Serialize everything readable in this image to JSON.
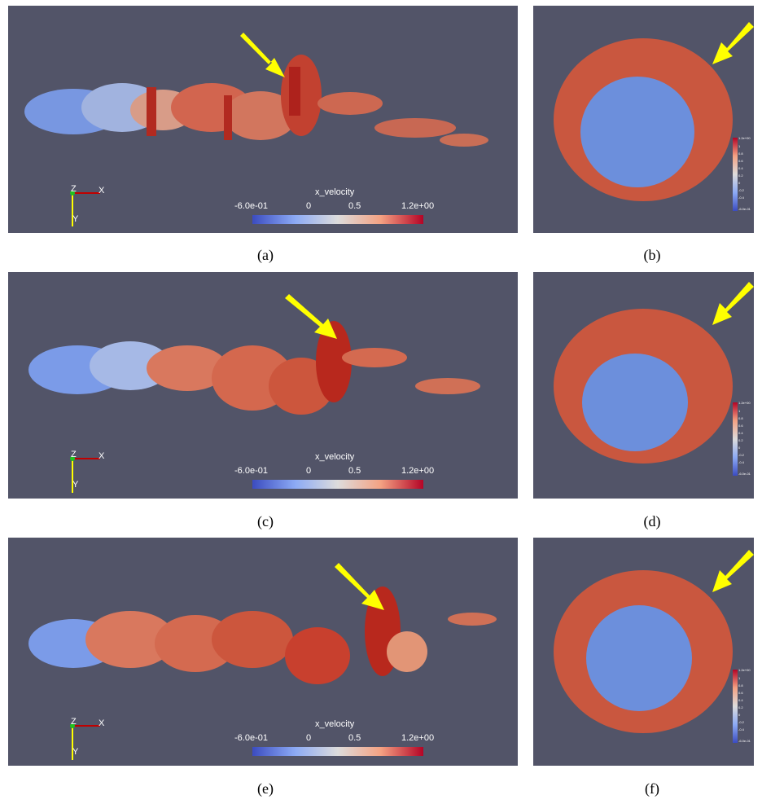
{
  "captions": [
    "(a)",
    "(b)",
    "(c)",
    "(d)",
    "(e)",
    "(f)"
  ],
  "side_panel": {
    "legend_title": "x_velocity",
    "ticks": [
      "-6.0e-01",
      "0",
      "0.5",
      "1.2e+00"
    ],
    "axes": {
      "z": "Z",
      "x": "X",
      "y": "Y"
    }
  },
  "top_panel": {
    "ticks": [
      "1.2e+00",
      "1",
      "0.8",
      "0.6",
      "0.4",
      "0.2",
      "0",
      "-0.2",
      "-0.4",
      "-6.0e-01"
    ]
  },
  "colors": {
    "background": "#525468",
    "low": "#3b4cc0",
    "mid": "#dddcdc",
    "high": "#b40426",
    "arrow": "#ffff00"
  }
}
